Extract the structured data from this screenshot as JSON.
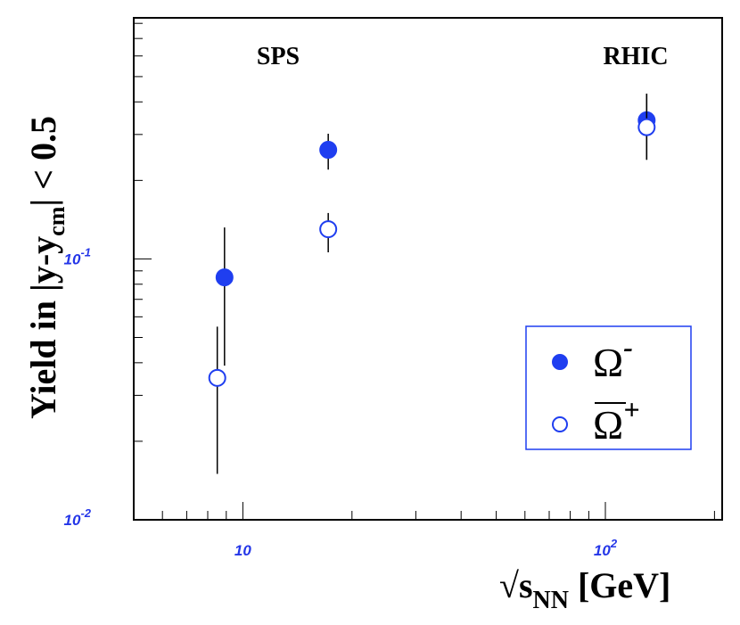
{
  "chart_data": {
    "type": "scatter",
    "annotations": [
      "SPS",
      "RHIC"
    ],
    "xlabel": {
      "text": "√s",
      "sub": "NN",
      "after": " [GeV]"
    },
    "ylabel": {
      "text": "Yield in |y-y",
      "sub": "cm",
      "after": "| < 0.5"
    },
    "x_scale": "log",
    "y_scale": "log",
    "xlim": [
      5,
      210
    ],
    "ylim": [
      0.01,
      0.84
    ],
    "xticks": [
      10,
      {
        "value": 100,
        "label": "10",
        "exponent": "2"
      }
    ],
    "yticks": [
      {
        "value": 0.01,
        "label": "10",
        "exponent": "-2"
      },
      {
        "value": 0.1,
        "label": "10",
        "exponent": "-1"
      }
    ],
    "xminor_ticks": [
      6,
      7,
      8,
      9,
      20,
      30,
      40,
      50,
      60,
      70,
      80,
      90,
      200
    ],
    "yminor_ticks": [
      0.02,
      0.03,
      0.04,
      0.05,
      0.06,
      0.07,
      0.08,
      0.09,
      0.2,
      0.3,
      0.4,
      0.5,
      0.6,
      0.7,
      0.8
    ],
    "legend": "lower right",
    "series": [
      {
        "name": "Ω",
        "superscript": "-",
        "overline": false,
        "filled": true,
        "color": "#1f3ef0",
        "x": [
          8.9,
          17.2,
          130
        ],
        "values": [
          0.085,
          0.262,
          0.34
        ],
        "error_low": [
          0.046,
          0.042,
          0.1
        ],
        "error_high": [
          0.047,
          0.04,
          0.09
        ]
      },
      {
        "name": "Ω",
        "superscript": "+",
        "overline": true,
        "filled": false,
        "color": "#1f3ef0",
        "x": [
          8.5,
          17.2,
          130
        ],
        "values": [
          0.035,
          0.13,
          0.32
        ],
        "error_low": [
          0.02,
          0.024,
          0.08
        ],
        "error_high": [
          0.02,
          0.02,
          0.11
        ]
      }
    ]
  }
}
